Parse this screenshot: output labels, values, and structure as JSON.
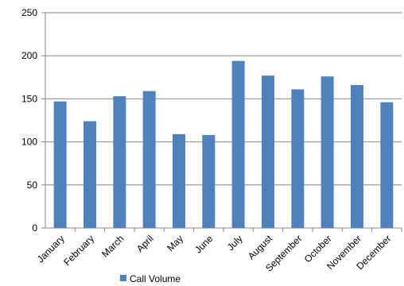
{
  "chart_data": {
    "type": "bar",
    "categories": [
      "January",
      "February",
      "March",
      "April",
      "May",
      "June",
      "July",
      "August",
      "September",
      "October",
      "November",
      "December"
    ],
    "series": [
      {
        "name": "Call Volume",
        "color": "#4F81BD",
        "values": [
          147,
          124,
          153,
          159,
          109,
          108,
          194,
          177,
          161,
          176,
          166,
          146
        ]
      }
    ],
    "ylim": [
      0,
      250
    ],
    "yticks": [
      0,
      50,
      100,
      150,
      200,
      250
    ],
    "grid": true,
    "grid_color": "#888888",
    "legend": "bottom"
  }
}
